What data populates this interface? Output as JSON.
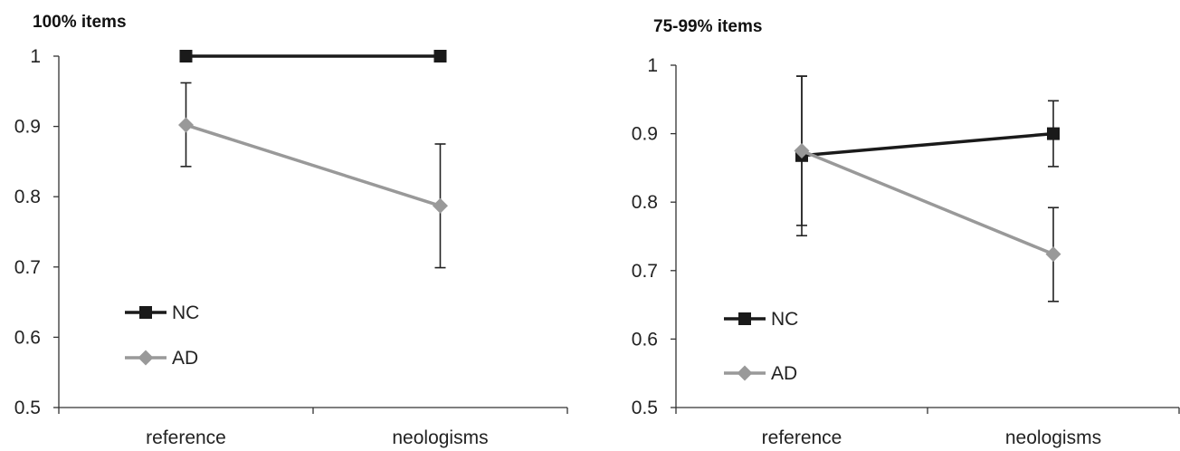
{
  "chart_data": [
    {
      "type": "line",
      "title": "100% items",
      "categories": [
        "reference",
        "neologisms"
      ],
      "ylim": [
        0.5,
        1
      ],
      "yticks": [
        "0.5",
        "0.6",
        "0.7",
        "0.8",
        "0.9",
        "1"
      ],
      "grid": false,
      "legend_position": "bottom-left",
      "series": [
        {
          "name": "NC",
          "color": "#1a1a1a",
          "marker": "square",
          "values": [
            1.0,
            1.0
          ],
          "error_low": [
            null,
            null
          ],
          "error_high": [
            null,
            null
          ]
        },
        {
          "name": "AD",
          "color": "#999999",
          "marker": "diamond",
          "values": [
            0.902,
            0.787
          ],
          "error_low": [
            0.843,
            0.699
          ],
          "error_high": [
            0.962,
            0.875
          ]
        }
      ]
    },
    {
      "type": "line",
      "title": "75-99% items",
      "categories": [
        "reference",
        "neologisms"
      ],
      "ylim": [
        0.5,
        1
      ],
      "yticks": [
        "0.5",
        "0.6",
        "0.7",
        "0.8",
        "0.9",
        "1"
      ],
      "grid": false,
      "legend_position": "bottom-left",
      "series": [
        {
          "name": "NC",
          "color": "#1a1a1a",
          "marker": "square",
          "values": [
            0.868,
            0.9
          ],
          "error_low": [
            0.751,
            0.852
          ],
          "error_high": [
            0.984,
            0.948
          ]
        },
        {
          "name": "AD",
          "color": "#999999",
          "marker": "diamond",
          "values": [
            0.875,
            0.724
          ],
          "error_low": [
            0.766,
            0.655
          ],
          "error_high": [
            0.984,
            0.792
          ]
        }
      ]
    }
  ]
}
